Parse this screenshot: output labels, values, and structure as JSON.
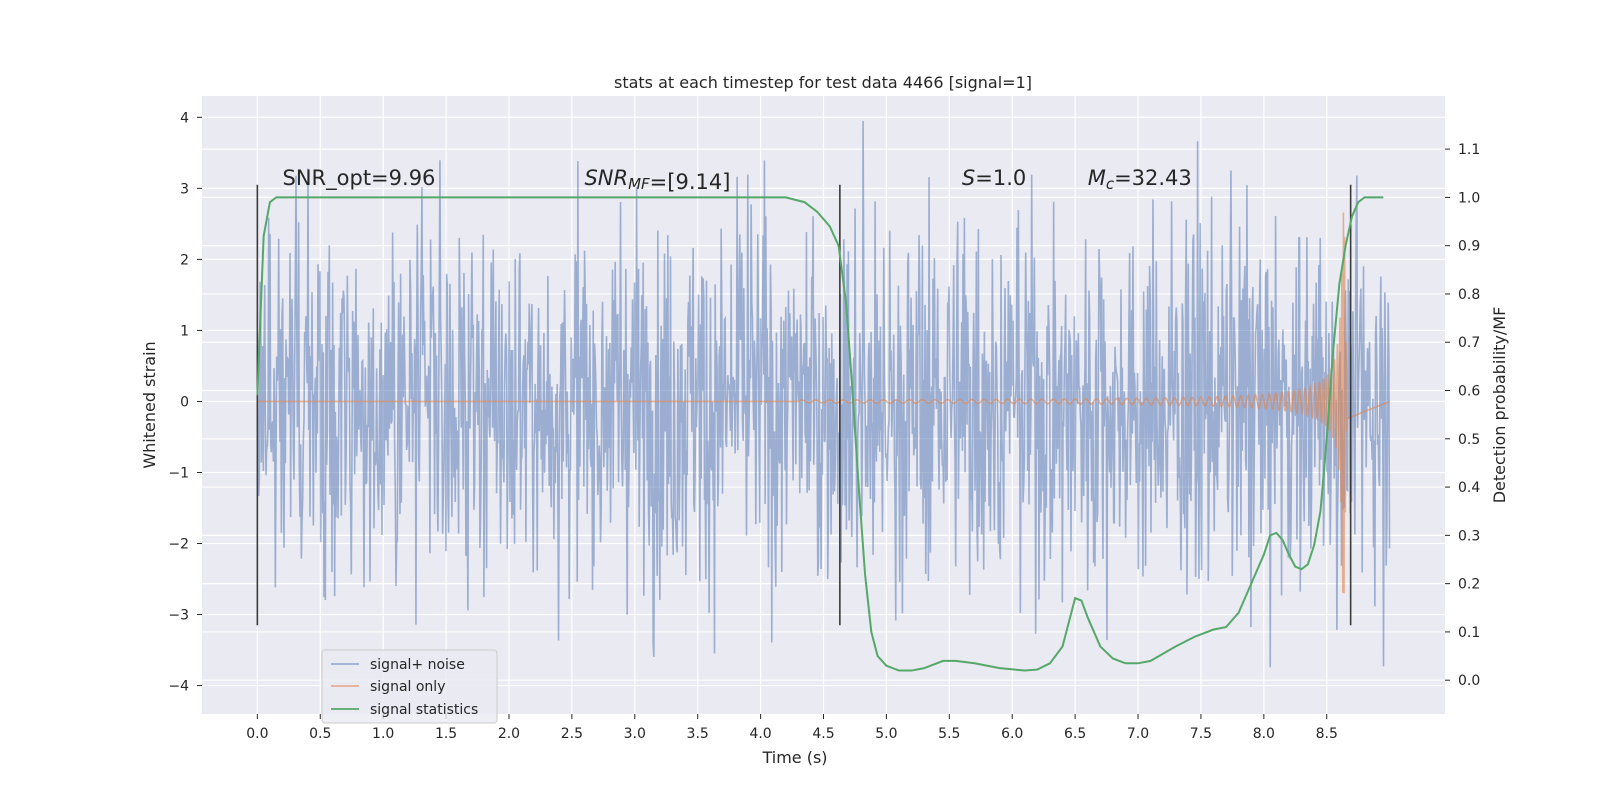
{
  "chart_data": {
    "type": "line",
    "title": "stats at each timestep for test data 4466 [signal=1]",
    "xlabel": "Time (s)",
    "ylabel": "Whitened strain",
    "y2label": "Detection probability/MF",
    "xlim": [
      -0.44,
      9.44
    ],
    "ylim": [
      -4.4,
      4.3
    ],
    "y2lim": [
      -0.07,
      1.21
    ],
    "xticks": [
      0.0,
      0.5,
      1.0,
      1.5,
      2.0,
      2.5,
      3.0,
      3.5,
      4.0,
      4.5,
      5.0,
      5.5,
      6.0,
      6.5,
      7.0,
      7.5,
      8.0,
      8.5
    ],
    "xtick_labels": [
      "0.0",
      "0.5",
      "1.0",
      "1.5",
      "2.0",
      "2.5",
      "3.0",
      "3.5",
      "4.0",
      "4.5",
      "5.0",
      "5.5",
      "6.0",
      "6.5",
      "7.0",
      "7.5",
      "8.0",
      "8.5"
    ],
    "yticks": [
      -4,
      -3,
      -2,
      -1,
      0,
      1,
      2,
      3,
      4
    ],
    "ytick_labels": [
      "−4",
      "−3",
      "−2",
      "−1",
      "0",
      "1",
      "2",
      "3",
      "4"
    ],
    "y2ticks": [
      0.0,
      0.1,
      0.2,
      0.3,
      0.4,
      0.5,
      0.6,
      0.7,
      0.8,
      0.9,
      1.0,
      1.1
    ],
    "y2tick_labels": [
      "0.0",
      "0.1",
      "0.2",
      "0.3",
      "0.4",
      "0.5",
      "0.6",
      "0.7",
      "0.8",
      "0.9",
      "1.0",
      "1.1"
    ],
    "grid": true,
    "legend_position": "lower-left",
    "annotations": [
      {
        "text": "SNR_opt=9.96",
        "x": 0.2,
        "y": 3.05
      },
      {
        "text": "SNR_MF=[9.14]",
        "x": 2.6,
        "y": 3.05
      },
      {
        "text": "S=1.0",
        "x": 5.6,
        "y": 3.05
      },
      {
        "text": "M_c=32.43",
        "x": 6.6,
        "y": 3.05
      }
    ],
    "vlines": [
      {
        "x": 0.0,
        "ymin": -3.15,
        "ymax": 3.05
      },
      {
        "x": 4.63,
        "ymin": -3.15,
        "ymax": 3.05
      },
      {
        "x": 8.69,
        "ymin": -3.15,
        "ymax": 3.05
      }
    ],
    "series": [
      {
        "name": "signal+ noise",
        "color": "#4c72b0",
        "opacity": 0.5,
        "x_range": [
          0.0,
          8.999
        ],
        "amplitude_range": [
          -4.0,
          3.95
        ]
      },
      {
        "name": "signal only",
        "color": "#dd8452",
        "opacity": 0.6,
        "chirp_start": 4.3,
        "merger_time": 8.64,
        "peak_amplitude": 2.7
      },
      {
        "name": "signal statistics",
        "color": "#55a868",
        "axis": "right",
        "x": [
          0.0,
          0.05,
          0.1,
          0.15,
          0.2,
          0.5,
          1.0,
          2.0,
          3.0,
          4.0,
          4.2,
          4.35,
          4.45,
          4.55,
          4.62,
          4.68,
          4.73,
          4.78,
          4.83,
          4.88,
          4.93,
          5.0,
          5.1,
          5.2,
          5.3,
          5.45,
          5.55,
          5.7,
          5.9,
          6.1,
          6.2,
          6.3,
          6.4,
          6.45,
          6.5,
          6.55,
          6.6,
          6.65,
          6.7,
          6.8,
          6.9,
          7.0,
          7.1,
          7.2,
          7.3,
          7.45,
          7.6,
          7.7,
          7.8,
          7.9,
          8.0,
          8.05,
          8.1,
          8.15,
          8.2,
          8.25,
          8.3,
          8.35,
          8.4,
          8.45,
          8.5,
          8.55,
          8.6,
          8.65,
          8.7,
          8.75,
          8.8,
          8.85,
          8.9,
          8.95
        ],
        "y": [
          0.59,
          0.92,
          0.99,
          1.0,
          1.0,
          1.0,
          1.0,
          1.0,
          1.0,
          1.0,
          1.0,
          0.99,
          0.97,
          0.94,
          0.9,
          0.78,
          0.6,
          0.4,
          0.22,
          0.1,
          0.05,
          0.03,
          0.02,
          0.02,
          0.025,
          0.04,
          0.04,
          0.035,
          0.025,
          0.02,
          0.022,
          0.035,
          0.07,
          0.12,
          0.17,
          0.165,
          0.13,
          0.1,
          0.07,
          0.045,
          0.035,
          0.035,
          0.04,
          0.055,
          0.07,
          0.09,
          0.105,
          0.11,
          0.14,
          0.2,
          0.26,
          0.3,
          0.305,
          0.29,
          0.26,
          0.235,
          0.23,
          0.24,
          0.28,
          0.35,
          0.5,
          0.68,
          0.82,
          0.9,
          0.96,
          0.99,
          1.0,
          1.0,
          1.0,
          1.0
        ]
      }
    ]
  }
}
